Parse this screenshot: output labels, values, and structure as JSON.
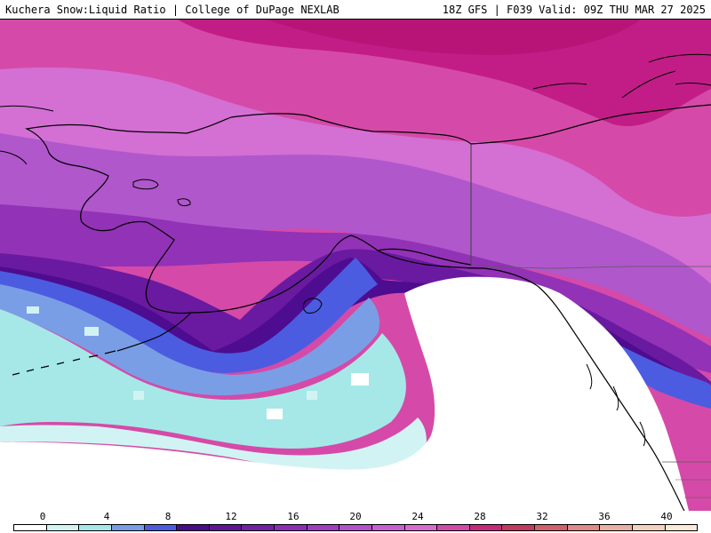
{
  "header": {
    "left_title": "Kuchera Snow:Liquid Ratio | College of DuPage NEXLAB",
    "right_title": "18Z GFS | F039 Valid: 09Z THU MAR 27 2025"
  },
  "colorbar": {
    "tick_labels": [
      "0",
      "4",
      "8",
      "12",
      "16",
      "20",
      "24",
      "28",
      "32",
      "36",
      "40"
    ],
    "colors": [
      "#ffffff",
      "#d2f3f3",
      "#a6e8e8",
      "#7a9ee6",
      "#4b5ce0",
      "#4a0c8a",
      "#5d1696",
      "#7420a6",
      "#8a2eb6",
      "#9e3dc2",
      "#b350cc",
      "#c860d2",
      "#d86cce",
      "#d04aa8",
      "#c8287e",
      "#c23a5e",
      "#d0606c",
      "#de8a86",
      "#e8b0a0",
      "#f2d2bc",
      "#f8ead6"
    ]
  },
  "map": {
    "region": "Alaska and Northeast Pacific",
    "palette": {
      "magenta_dark": "#c21d86",
      "magenta": "#d54aa8",
      "pink_purple": "#d46fd4",
      "purple_light": "#b057cc",
      "purple": "#9232b6",
      "purple_dark": "#6a1aa0",
      "indigo": "#4e0c90",
      "blue": "#4b5ce0",
      "blue_light": "#7a9ee6",
      "cyan": "#a6e8e8",
      "cyan_light": "#d2f3f3",
      "ocean_white": "#ffffff",
      "outline": "#000000",
      "state_line": "#5a5a5a"
    }
  }
}
